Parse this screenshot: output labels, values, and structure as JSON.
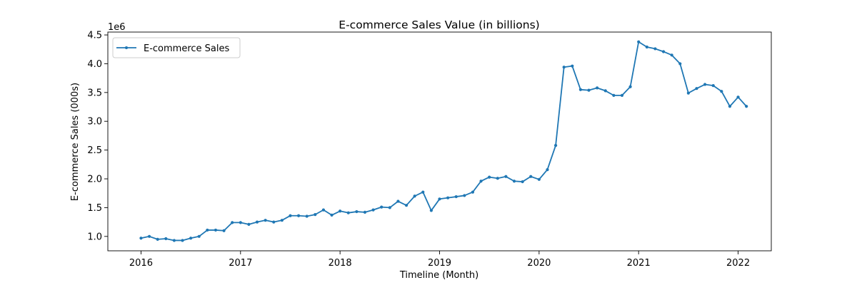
{
  "chart_data": {
    "type": "line",
    "title": "E-commerce Sales Value (in billions)",
    "xlabel": "Timeline (Month)",
    "ylabel": "E-commerce Sales (000s)",
    "y_offset_label": "1e6",
    "x_ticks": [
      "2016",
      "2017",
      "2018",
      "2019",
      "2020",
      "2021",
      "2022"
    ],
    "y_ticks": [
      "1.0",
      "1.5",
      "2.0",
      "2.5",
      "3.0",
      "3.5",
      "4.0",
      "4.5"
    ],
    "xlim": [
      "2015-09",
      "2022-05"
    ],
    "ylim": [
      0.75,
      4.55
    ],
    "legend_position": "upper-left",
    "series": [
      {
        "name": "E-commerce Sales",
        "color": "#1f77b4",
        "marker": "dot",
        "points": [
          [
            "2016-01",
            0.97
          ],
          [
            "2016-02",
            1.0
          ],
          [
            "2016-03",
            0.95
          ],
          [
            "2016-04",
            0.96
          ],
          [
            "2016-05",
            0.93
          ],
          [
            "2016-06",
            0.93
          ],
          [
            "2016-07",
            0.97
          ],
          [
            "2016-08",
            1.0
          ],
          [
            "2016-09",
            1.11
          ],
          [
            "2016-10",
            1.11
          ],
          [
            "2016-11",
            1.1
          ],
          [
            "2016-12",
            1.24
          ],
          [
            "2017-01",
            1.24
          ],
          [
            "2017-02",
            1.21
          ],
          [
            "2017-03",
            1.25
          ],
          [
            "2017-04",
            1.28
          ],
          [
            "2017-05",
            1.25
          ],
          [
            "2017-06",
            1.28
          ],
          [
            "2017-07",
            1.36
          ],
          [
            "2017-08",
            1.36
          ],
          [
            "2017-09",
            1.35
          ],
          [
            "2017-10",
            1.38
          ],
          [
            "2017-11",
            1.46
          ],
          [
            "2017-12",
            1.37
          ],
          [
            "2018-01",
            1.44
          ],
          [
            "2018-02",
            1.41
          ],
          [
            "2018-03",
            1.43
          ],
          [
            "2018-04",
            1.42
          ],
          [
            "2018-05",
            1.46
          ],
          [
            "2018-06",
            1.51
          ],
          [
            "2018-07",
            1.5
          ],
          [
            "2018-08",
            1.61
          ],
          [
            "2018-09",
            1.54
          ],
          [
            "2018-10",
            1.7
          ],
          [
            "2018-11",
            1.77
          ],
          [
            "2018-12",
            1.45
          ],
          [
            "2019-01",
            1.65
          ],
          [
            "2019-02",
            1.67
          ],
          [
            "2019-03",
            1.69
          ],
          [
            "2019-04",
            1.71
          ],
          [
            "2019-05",
            1.77
          ],
          [
            "2019-06",
            1.96
          ],
          [
            "2019-07",
            2.03
          ],
          [
            "2019-08",
            2.01
          ],
          [
            "2019-09",
            2.04
          ],
          [
            "2019-10",
            1.96
          ],
          [
            "2019-11",
            1.95
          ],
          [
            "2019-12",
            2.04
          ],
          [
            "2020-01",
            1.99
          ],
          [
            "2020-02",
            2.16
          ],
          [
            "2020-03",
            2.58
          ],
          [
            "2020-04",
            3.94
          ],
          [
            "2020-05",
            3.96
          ],
          [
            "2020-06",
            3.55
          ],
          [
            "2020-07",
            3.54
          ],
          [
            "2020-08",
            3.58
          ],
          [
            "2020-09",
            3.53
          ],
          [
            "2020-10",
            3.45
          ],
          [
            "2020-11",
            3.45
          ],
          [
            "2020-12",
            3.6
          ],
          [
            "2021-01",
            4.38
          ],
          [
            "2021-02",
            4.29
          ],
          [
            "2021-03",
            4.26
          ],
          [
            "2021-04",
            4.21
          ],
          [
            "2021-05",
            4.15
          ],
          [
            "2021-06",
            4.0
          ],
          [
            "2021-07",
            3.49
          ],
          [
            "2021-08",
            3.57
          ],
          [
            "2021-09",
            3.64
          ],
          [
            "2021-10",
            3.62
          ],
          [
            "2021-11",
            3.52
          ],
          [
            "2021-12",
            3.26
          ],
          [
            "2022-01",
            3.42
          ],
          [
            "2022-02",
            3.26
          ]
        ]
      }
    ]
  }
}
